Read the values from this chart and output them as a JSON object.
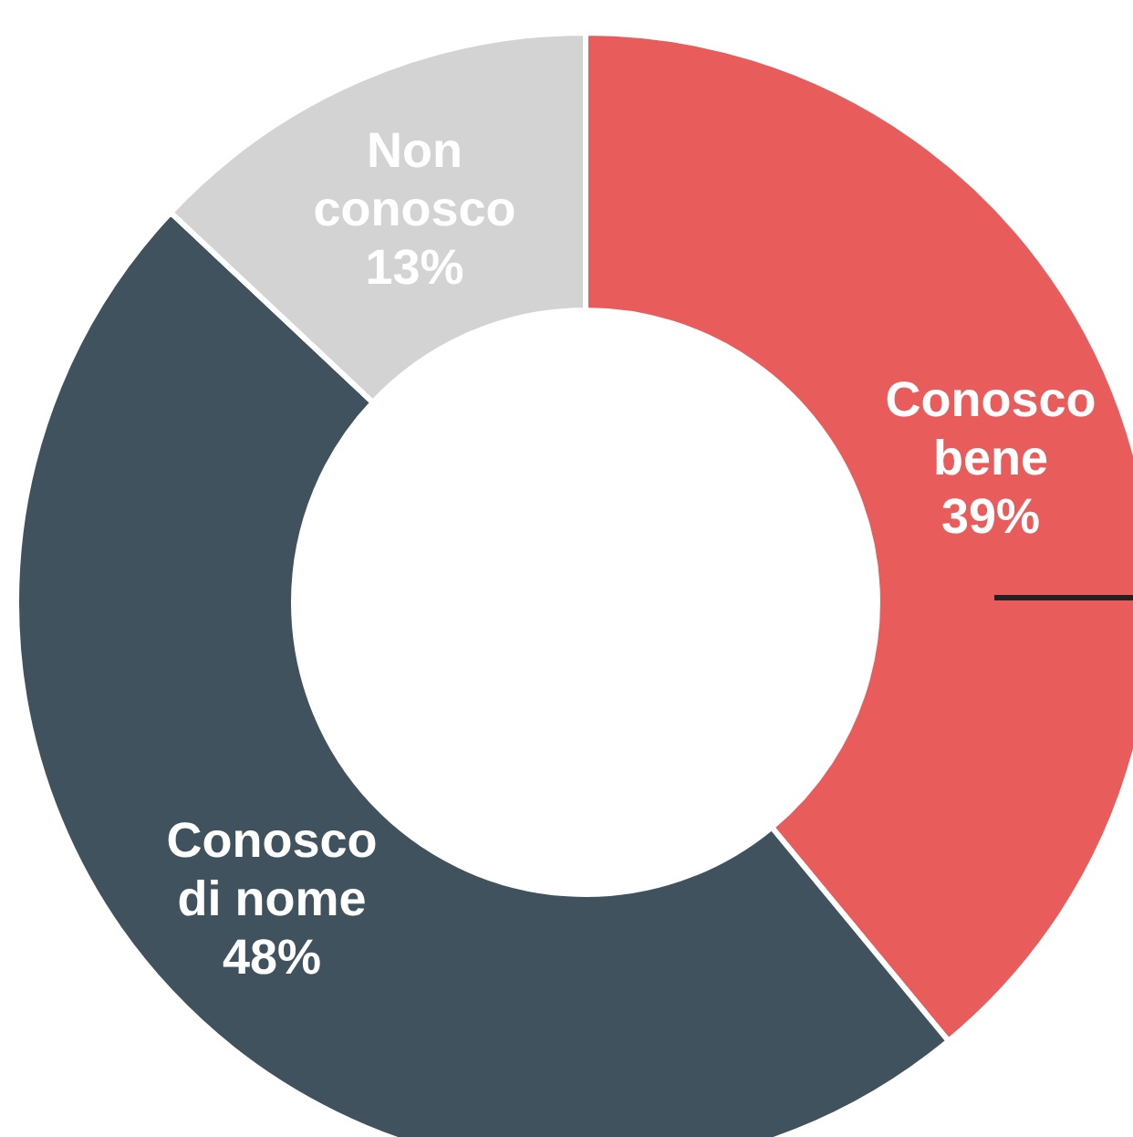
{
  "chart_data": {
    "type": "donut",
    "categories": [
      "Conosco bene",
      "Conosco di nome",
      "Non conosco"
    ],
    "values": [
      39,
      48,
      13
    ],
    "colors": [
      "#e85c5c",
      "#40525e",
      "#d3d3d3"
    ],
    "value_labels": [
      "39%",
      "48%",
      "13%"
    ]
  }
}
